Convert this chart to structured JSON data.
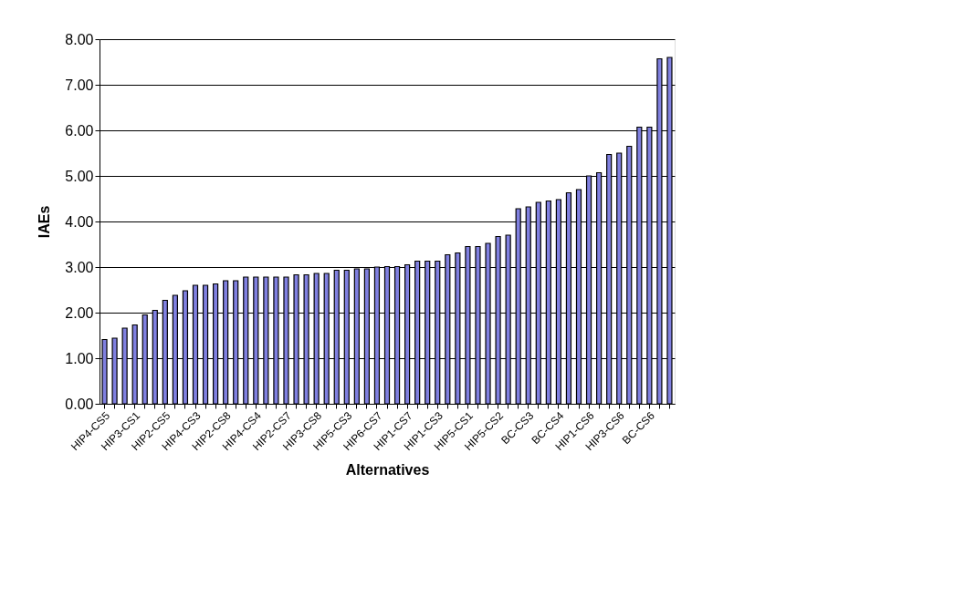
{
  "chart_data": {
    "type": "bar",
    "xlabel": "Alternatives",
    "ylabel": "IAEs",
    "categories": [
      "HIP4-CS5",
      null,
      null,
      "HIP3-CS1",
      null,
      null,
      "HIP2-CS5",
      null,
      null,
      "HIP4-CS3",
      null,
      null,
      "HIP2-CS8",
      null,
      null,
      "HIP4-CS4",
      null,
      null,
      "HIP2-CS7",
      null,
      null,
      "HIP3-CS8",
      null,
      null,
      "HIP5-CS3",
      null,
      null,
      "HIP6-CS7",
      null,
      null,
      "HIP1-CS7",
      null,
      null,
      "HIP1-CS3",
      null,
      null,
      "HIP5-CS1",
      null,
      null,
      "HIP5-CS2",
      null,
      null,
      "BC-CS3",
      null,
      null,
      "BC-CS4",
      null,
      null,
      "HIP1-CS6",
      null,
      null,
      "HIP3-CS6",
      null,
      null,
      "BC-CS6",
      null,
      null
    ],
    "values": [
      1.41,
      1.44,
      1.66,
      1.73,
      1.95,
      2.05,
      2.27,
      2.38,
      2.48,
      2.6,
      2.6,
      2.63,
      2.7,
      2.7,
      2.78,
      2.78,
      2.78,
      2.78,
      2.78,
      2.83,
      2.83,
      2.86,
      2.86,
      2.93,
      2.93,
      2.96,
      2.96,
      3.0,
      3.01,
      3.01,
      3.05,
      3.13,
      3.13,
      3.13,
      3.27,
      3.31,
      3.45,
      3.45,
      3.52,
      3.67,
      3.7,
      4.28,
      4.32,
      4.42,
      4.45,
      4.48,
      4.63,
      4.7,
      5.0,
      5.07,
      5.47,
      5.5,
      5.65,
      6.07,
      6.07,
      7.57,
      7.6
    ],
    "color": "#8080e0",
    "ylim": [
      0,
      8
    ],
    "yticks": [
      {
        "value": 0,
        "label": "0.00"
      },
      {
        "value": 1,
        "label": "1.00"
      },
      {
        "value": 2,
        "label": "2.00"
      },
      {
        "value": 3,
        "label": "3.00"
      },
      {
        "value": 4,
        "label": "4.00"
      },
      {
        "value": 5,
        "label": "5.00"
      },
      {
        "value": 6,
        "label": "6.00"
      },
      {
        "value": 7,
        "label": "7.00"
      },
      {
        "value": 8,
        "label": "8.00"
      }
    ],
    "grid": "y"
  }
}
